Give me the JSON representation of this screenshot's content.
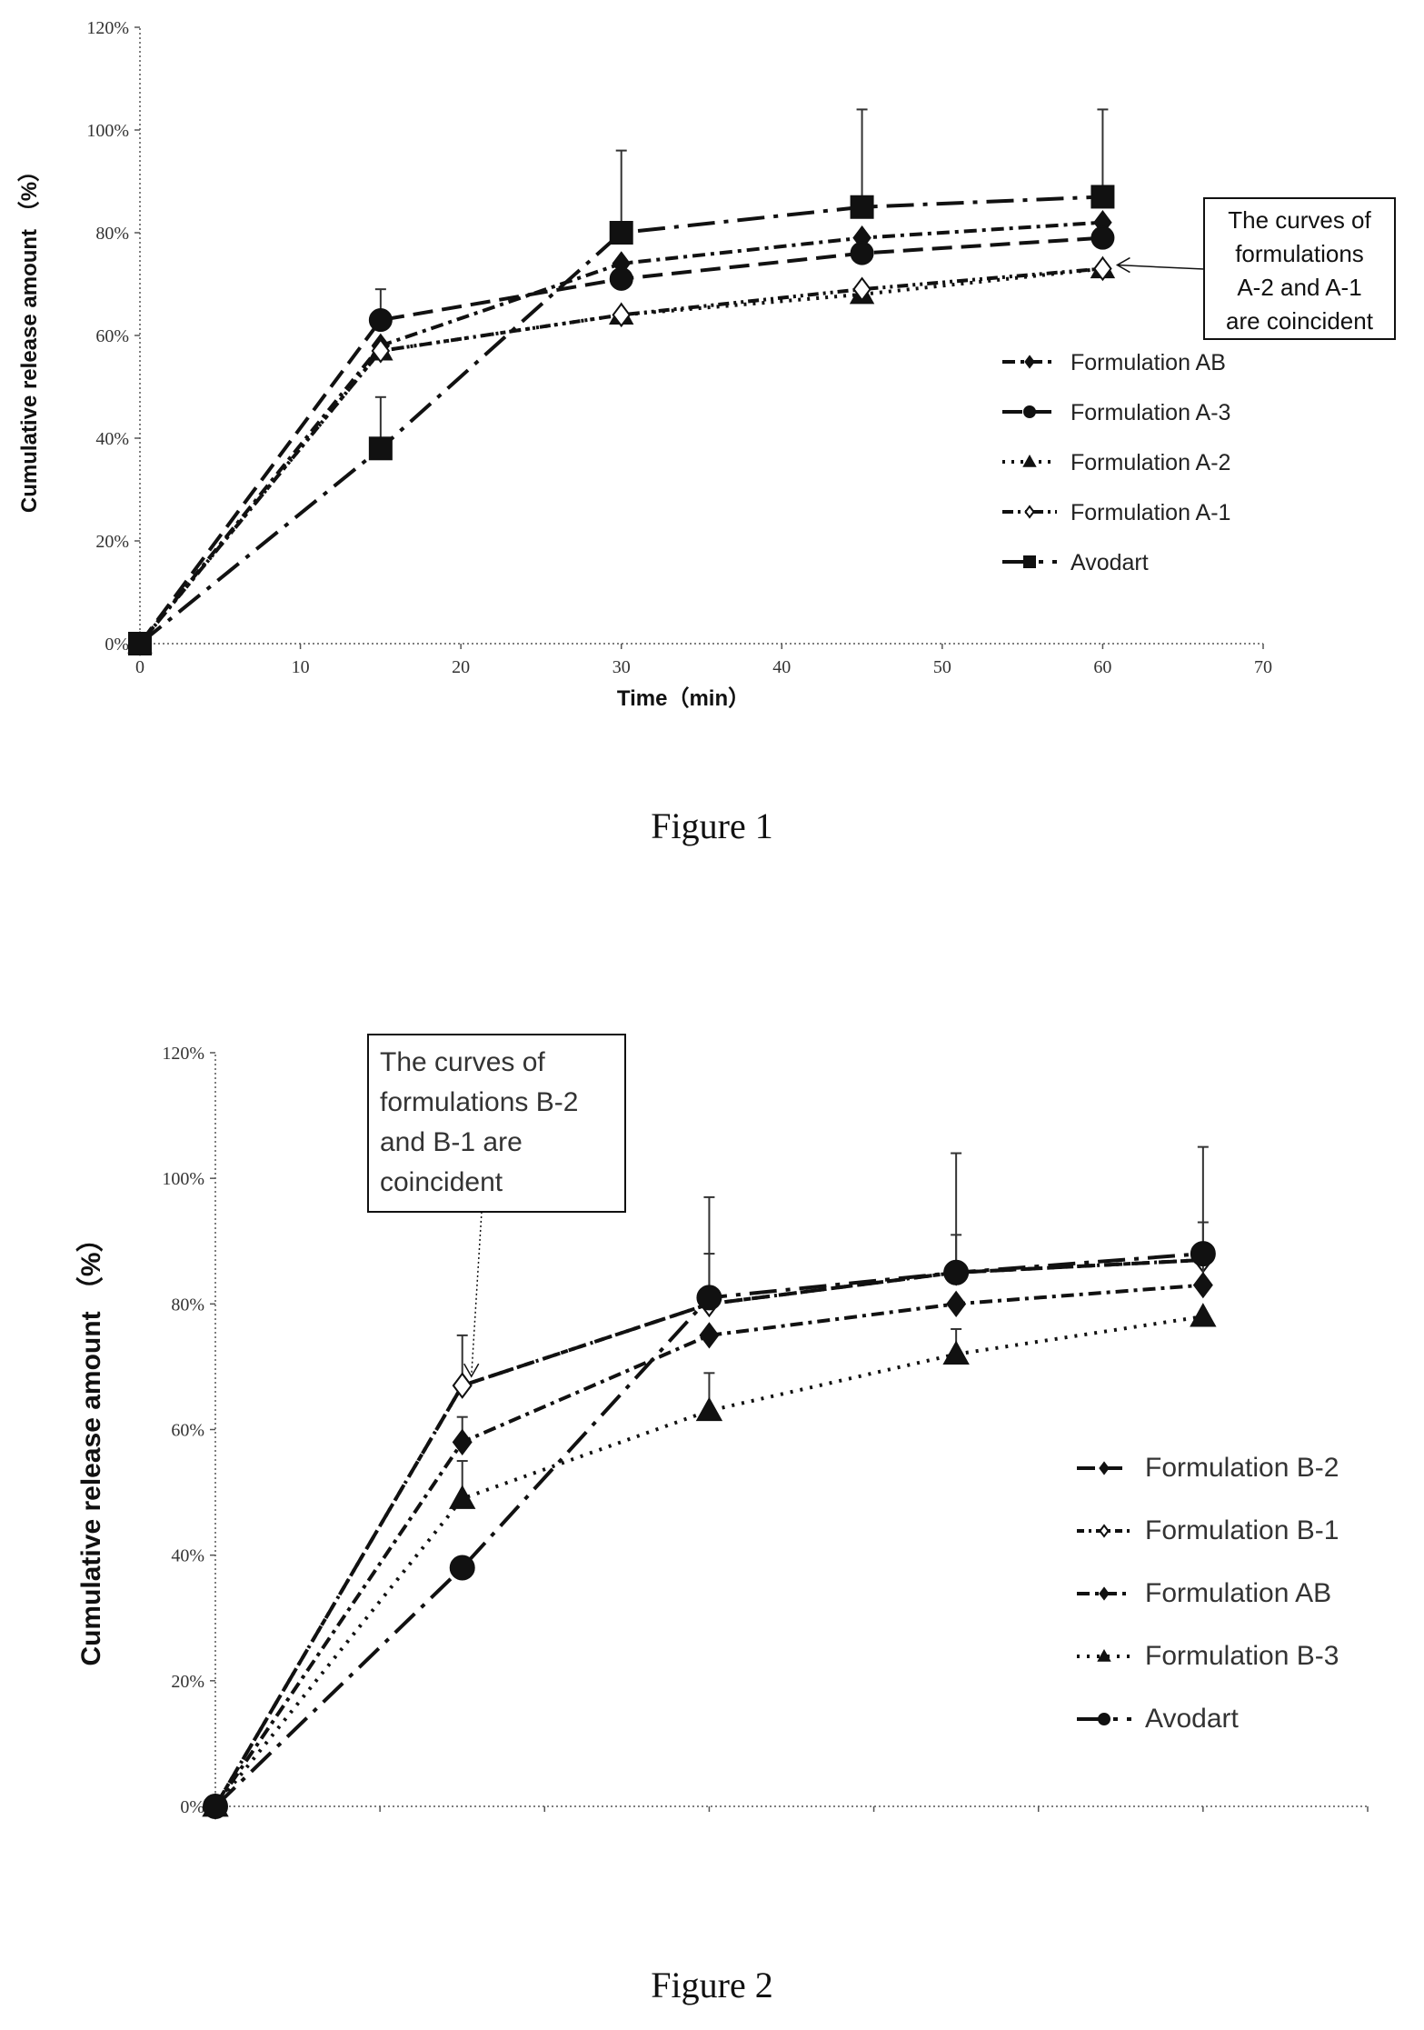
{
  "captions": {
    "figure1": "Figure 1",
    "figure2": "Figure 2"
  },
  "chart_data": [
    {
      "type": "line",
      "ylabel": "Cumulative release amount （%）",
      "xlabel": "Time（min）",
      "xlim": [
        0,
        70
      ],
      "ylim": [
        0,
        120
      ],
      "x_ticks": [
        "0",
        "10",
        "20",
        "30",
        "40",
        "50",
        "60",
        "70"
      ],
      "y_ticks": [
        "0%",
        "20%",
        "40%",
        "60%",
        "80%",
        "100%",
        "120%"
      ],
      "grid": false,
      "legend_position": "right",
      "annotation": [
        "The curves of",
        "formulations",
        "A-2 and A-1",
        "are coincident"
      ],
      "series": [
        {
          "name": "Formulation AB",
          "marker": "diamond",
          "dash": "14,6,4,6",
          "x": [
            0,
            15,
            30,
            45,
            60
          ],
          "y": [
            0,
            58,
            74,
            79,
            82
          ],
          "err": [
            0,
            0,
            0,
            0,
            0
          ]
        },
        {
          "name": "Formulation A-3",
          "marker": "circle",
          "dash": "22,10",
          "x": [
            0,
            15,
            30,
            45,
            60
          ],
          "y": [
            0,
            63,
            71,
            76,
            79
          ],
          "err": [
            0,
            6,
            0,
            0,
            0
          ]
        },
        {
          "name": "Formulation A-2",
          "marker": "triangle",
          "dash": "3,7",
          "x": [
            0,
            15,
            30,
            45,
            60
          ],
          "y": [
            0,
            57,
            64,
            68,
            73
          ],
          "err": [
            0,
            0,
            0,
            0,
            0
          ]
        },
        {
          "name": "Formulation A-1",
          "marker": "open-diamond",
          "dash": "12,5,3,5,3,5",
          "x": [
            0,
            15,
            30,
            45,
            60
          ],
          "y": [
            0,
            57,
            64,
            69,
            73
          ],
          "err": [
            0,
            0,
            0,
            0,
            0
          ]
        },
        {
          "name": "Avodart",
          "marker": "square",
          "dash": "30,10,5,10",
          "x": [
            0,
            15,
            30,
            45,
            60
          ],
          "y": [
            0,
            38,
            80,
            85,
            87
          ],
          "err": [
            0,
            10,
            16,
            19,
            17
          ]
        }
      ]
    },
    {
      "type": "line",
      "ylabel": "Cumulative release amount （%）",
      "xlabel": "",
      "xlim": [
        0,
        70
      ],
      "ylim": [
        0,
        120
      ],
      "x_ticks": [],
      "y_ticks": [
        "0%",
        "20%",
        "40%",
        "60%",
        "80%",
        "100%",
        "120%"
      ],
      "grid": false,
      "legend_position": "right",
      "annotation": [
        "The curves of",
        "formulations B-2",
        "and B-1 are",
        "coincident"
      ],
      "series": [
        {
          "name": "Formulation B-2",
          "marker": "diamond",
          "dash": "20,10",
          "x": [
            0,
            15,
            30,
            45,
            60
          ],
          "y": [
            0,
            67,
            80,
            85,
            87
          ],
          "err": [
            0,
            8,
            8,
            6,
            6
          ]
        },
        {
          "name": "Formulation B-1",
          "marker": "open-diamond",
          "dash": "8,5,3,5",
          "x": [
            0,
            15,
            30,
            45,
            60
          ],
          "y": [
            0,
            67,
            80,
            85,
            87
          ],
          "err": [
            0,
            0,
            0,
            0,
            0
          ]
        },
        {
          "name": "Formulation AB",
          "marker": "diamond",
          "dash": "14,6,4,6",
          "x": [
            0,
            15,
            30,
            45,
            60
          ],
          "y": [
            0,
            58,
            75,
            80,
            83
          ],
          "err": [
            0,
            4,
            0,
            0,
            4
          ]
        },
        {
          "name": "Formulation B-3",
          "marker": "triangle",
          "dash": "3,8",
          "x": [
            0,
            15,
            30,
            45,
            60
          ],
          "y": [
            0,
            49,
            63,
            72,
            78
          ],
          "err": [
            0,
            6,
            6,
            4,
            0
          ]
        },
        {
          "name": "Avodart",
          "marker": "circle",
          "dash": "30,10,5,10",
          "x": [
            0,
            15,
            30,
            45,
            60
          ],
          "y": [
            0,
            38,
            81,
            85,
            88
          ],
          "err": [
            0,
            0,
            16,
            19,
            17
          ]
        }
      ]
    }
  ]
}
